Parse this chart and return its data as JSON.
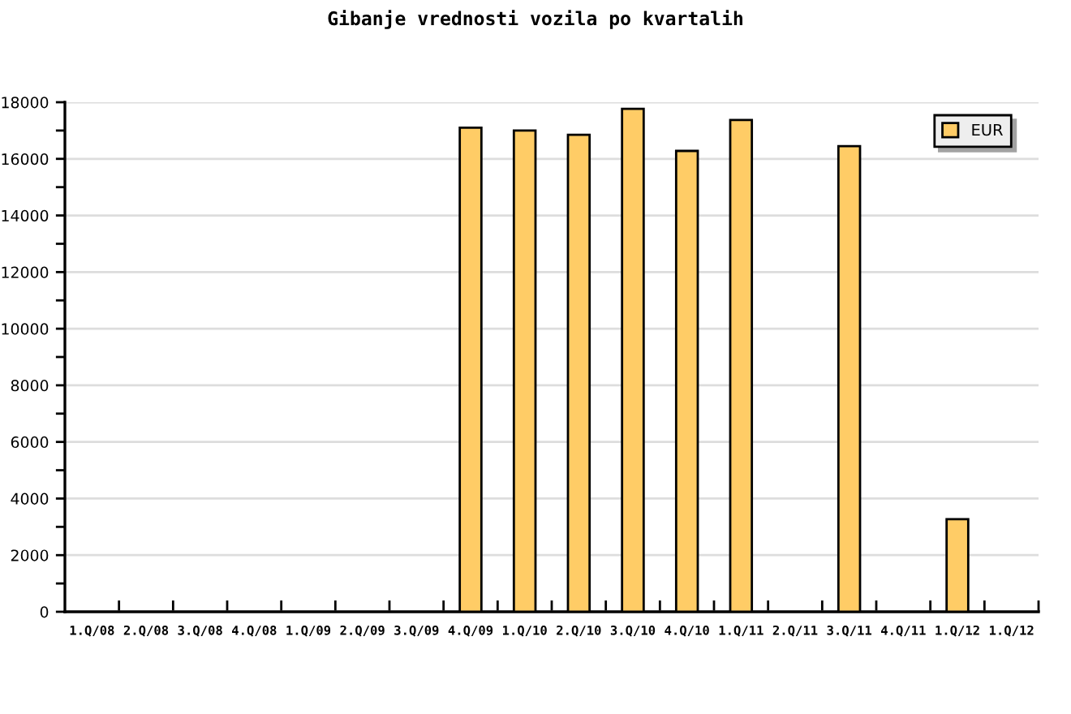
{
  "chart_data": {
    "type": "bar",
    "title": "Gibanje vrednosti vozila po kvartalih",
    "categories": [
      "1.Q/08",
      "2.Q/08",
      "3.Q/08",
      "4.Q/08",
      "1.Q/09",
      "2.Q/09",
      "3.Q/09",
      "4.Q/09",
      "1.Q/10",
      "2.Q/10",
      "3.Q/10",
      "4.Q/10",
      "1.Q/11",
      "2.Q/11",
      "3.Q/11",
      "4.Q/11",
      "1.Q/12",
      "1.Q/12"
    ],
    "series": [
      {
        "name": "EUR",
        "color": "#ffcc66",
        "values": [
          null,
          null,
          null,
          null,
          null,
          null,
          null,
          17100,
          17000,
          16850,
          17770,
          16280,
          17370,
          null,
          16450,
          null,
          3270,
          null
        ]
      }
    ],
    "ylim": [
      0,
      18000
    ],
    "yticks": [
      0,
      {
        "value": 1000,
        "label": null
      },
      2000,
      {
        "value": 3000,
        "label": null
      },
      4000,
      {
        "value": 5000,
        "label": null
      },
      6000,
      {
        "value": 7000,
        "label": null
      },
      8000,
      {
        "value": 9000,
        "label": null
      },
      10000,
      {
        "value": 11000,
        "label": null
      },
      12000,
      {
        "value": 13000,
        "label": null
      },
      14000,
      {
        "value": 15000,
        "label": null
      },
      16000,
      {
        "value": 17000,
        "label": null
      },
      18000
    ],
    "grid": "y",
    "legend": "top right"
  }
}
